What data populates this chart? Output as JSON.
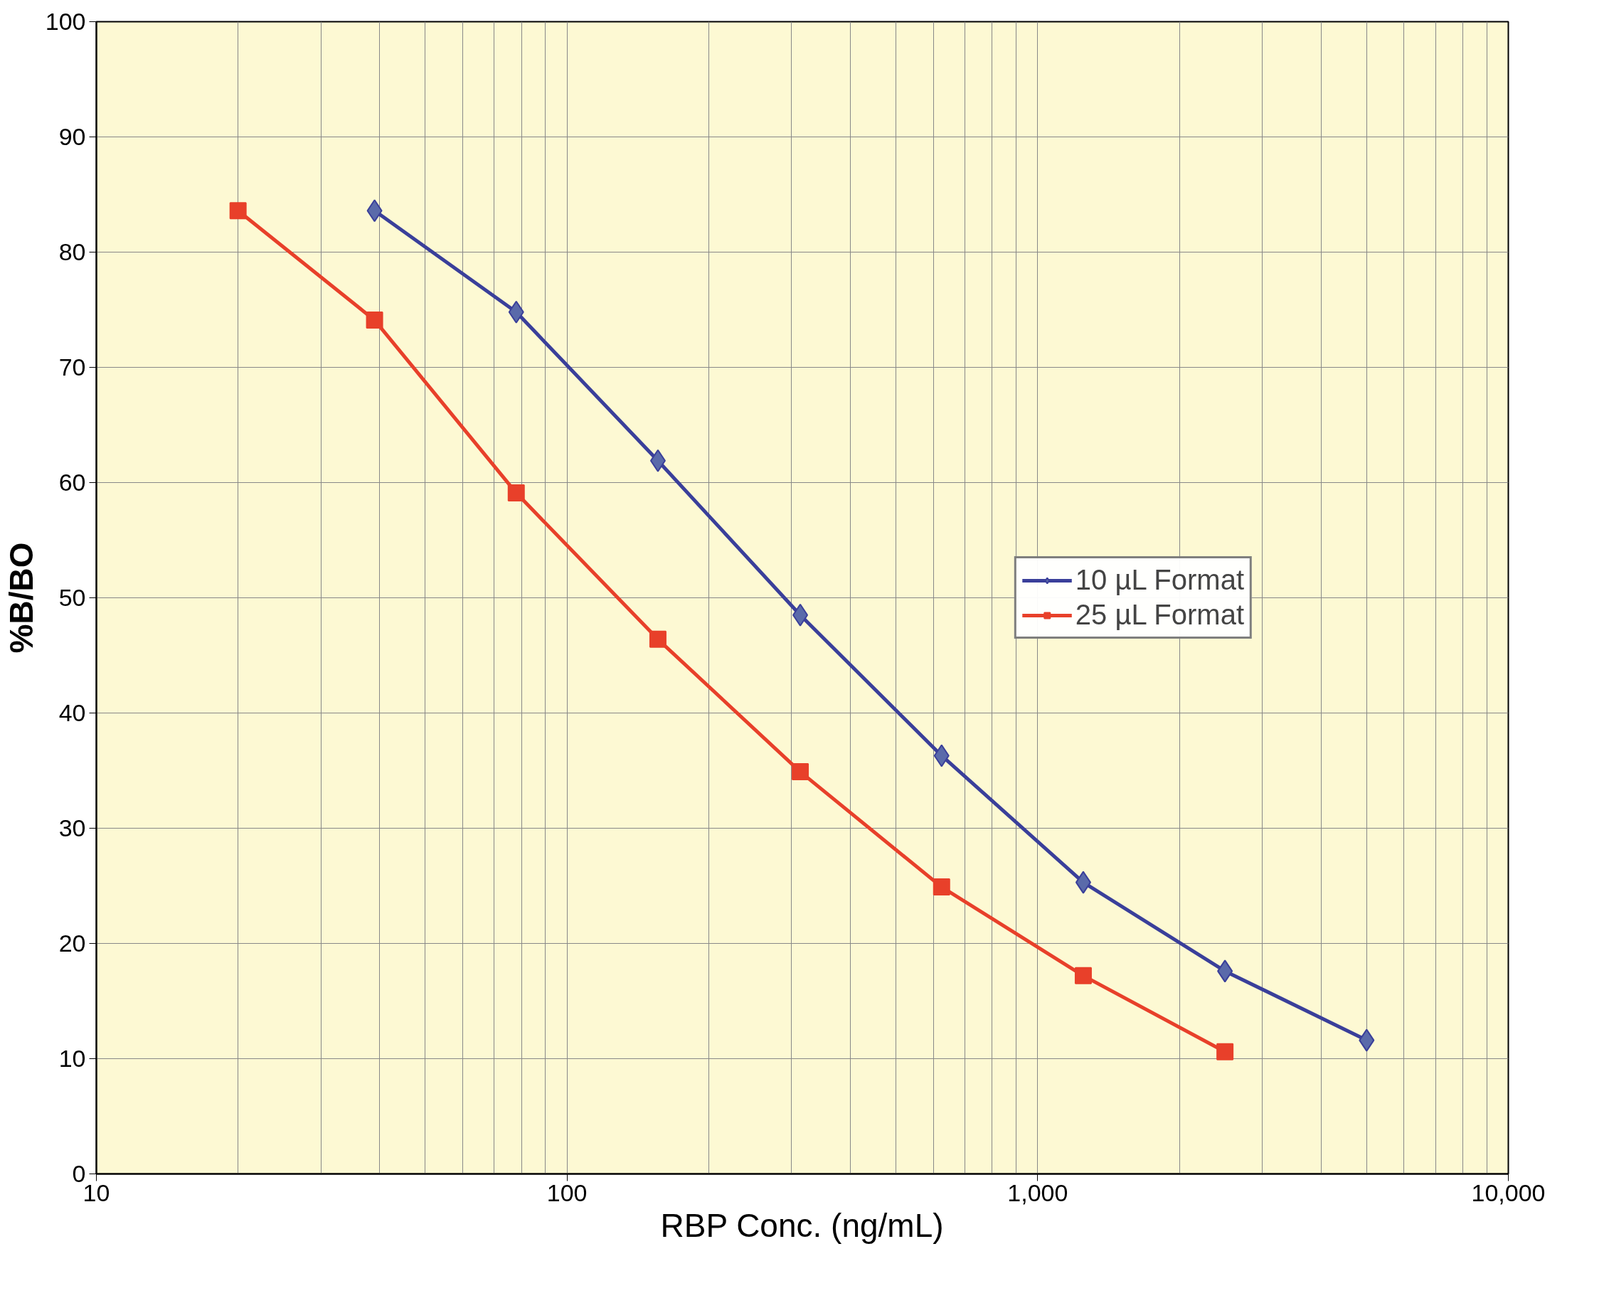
{
  "chart_data": {
    "type": "line",
    "xlabel": "RBP Conc. (ng/mL)",
    "ylabel": "%B/BO",
    "log": "x",
    "grid": true,
    "legend": "right",
    "line_style": "solid",
    "xlim": [
      10,
      10000
    ],
    "ylim": [
      0,
      100
    ],
    "xticks": [
      10,
      100,
      {
        "value": 1000,
        "label": "1,000"
      },
      {
        "value": 10000,
        "label": "10,000"
      }
    ],
    "yticks": [
      0,
      10,
      20,
      30,
      40,
      50,
      60,
      70,
      80,
      90,
      100
    ],
    "series": [
      {
        "name": "10 µL Format",
        "color": "#3a3f9a",
        "marker": "diamond",
        "x": [
          39,
          78,
          156,
          313,
          625,
          1250,
          2500,
          5000
        ],
        "values": [
          83.6,
          74.8,
          61.9,
          48.5,
          36.3,
          25.3,
          17.6,
          11.6
        ]
      },
      {
        "name": "25 µL Format",
        "color": "#e8402a",
        "marker": "square",
        "x": [
          20,
          39,
          78,
          156,
          313,
          625,
          1250,
          2500
        ],
        "values": [
          83.6,
          74.1,
          59.1,
          46.4,
          34.9,
          24.9,
          17.2,
          10.6
        ]
      }
    ]
  }
}
